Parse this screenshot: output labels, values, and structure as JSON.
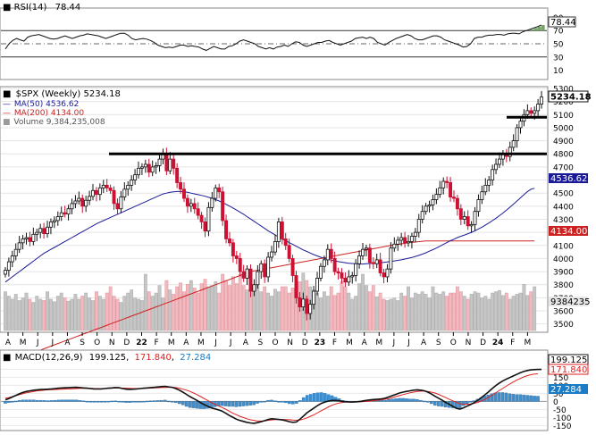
{
  "chart_data": {
    "type": "candlestick",
    "rsi": {
      "label": "RSI(14)",
      "value_text": "78.44",
      "scale_ticks": [
        "90",
        "70",
        "50",
        "30",
        "10"
      ],
      "ylim": [
        0,
        100
      ],
      "overbought": 70,
      "oversold": 30,
      "values": [
        42,
        50,
        55,
        58,
        56,
        54,
        60,
        62,
        63,
        64,
        62,
        60,
        58,
        57,
        58,
        60,
        62,
        60,
        58,
        60,
        62,
        63,
        65,
        64,
        63,
        62,
        60,
        58,
        60,
        62,
        64,
        66,
        66,
        63,
        58,
        56,
        57,
        58,
        57,
        55,
        52,
        48,
        46,
        44,
        45,
        44,
        46,
        48,
        48,
        46,
        47,
        46,
        45,
        42,
        40,
        43,
        46,
        44,
        42,
        42,
        46,
        47,
        50,
        54,
        56,
        54,
        52,
        50,
        46,
        44,
        42,
        44,
        42,
        45,
        46,
        48,
        46,
        50,
        53,
        52,
        48,
        46,
        48,
        50,
        52,
        52,
        54,
        55,
        52,
        50,
        48,
        50,
        52,
        54,
        58,
        59,
        60,
        58,
        60,
        58,
        52,
        50,
        48,
        52,
        55,
        58,
        60,
        62,
        64,
        62,
        58,
        56,
        56,
        58,
        60,
        62,
        62,
        60,
        56,
        54,
        52,
        50,
        48,
        45,
        46,
        50,
        58,
        60,
        60,
        62,
        63,
        63,
        64,
        64,
        63,
        65,
        66,
        66,
        65,
        68,
        70,
        72,
        74,
        76,
        78.44
      ]
    },
    "price": {
      "title": "$SPX (Weekly) 5234.18",
      "last_value": "5234.18",
      "ma50_label": "MA(50) 4536.62",
      "ma50_value": "4536.62",
      "ma200_label": "MA(200) 4134.00",
      "ma200_value": "4134.00",
      "volume_label": "Volume 9,384,235,008",
      "volume_value": "9384235",
      "ylim": [
        3450,
        5300
      ],
      "y_ticks": [
        3500,
        3600,
        3700,
        3800,
        3900,
        4000,
        4100,
        4200,
        4300,
        4400,
        4500,
        4600,
        4700,
        4800,
        4900,
        5000,
        5100,
        5200,
        5300
      ],
      "closes": [
        3910,
        3975,
        4020,
        4070,
        4120,
        4150,
        4160,
        4130,
        4185,
        4200,
        4230,
        4190,
        4240,
        4280,
        4290,
        4320,
        4350,
        4340,
        4380,
        4420,
        4440,
        4460,
        4400,
        4445,
        4475,
        4520,
        4490,
        4540,
        4560,
        4540,
        4520,
        4420,
        4380,
        4470,
        4530,
        4560,
        4600,
        4640,
        4690,
        4700,
        4720,
        4660,
        4700,
        4710,
        4760,
        4800,
        4670,
        4760,
        4690,
        4580,
        4530,
        4460,
        4400,
        4420,
        4380,
        4330,
        4280,
        4210,
        4390,
        4460,
        4540,
        4510,
        4290,
        4150,
        4120,
        4020,
        4000,
        3900,
        3850,
        3920,
        3750,
        3800,
        3900,
        3960,
        3860,
        4010,
        4050,
        4130,
        4280,
        4150,
        4100,
        4000,
        3870,
        3700,
        3630,
        3690,
        3580,
        3650,
        3750,
        3850,
        3940,
        3990,
        4070,
        4000,
        3900,
        3890,
        3850,
        3820,
        3860,
        3870,
        3960,
        4020,
        4070,
        4080,
        3970,
        3960,
        3990,
        3890,
        3860,
        3920,
        4080,
        4110,
        4140,
        4160,
        4120,
        4130,
        4170,
        4200,
        4300,
        4360,
        4400,
        4410,
        4450,
        4490,
        4540,
        4590,
        4580,
        4470,
        4460,
        4380,
        4300,
        4320,
        4250,
        4260,
        4360,
        4450,
        4510,
        4560,
        4600,
        4680,
        4720,
        4760,
        4800,
        4780,
        4850,
        4900,
        5000,
        5050,
        5100,
        5130,
        5110,
        5130,
        5180,
        5234.18
      ],
      "ma50": [
        3820,
        3840,
        3860,
        3880,
        3900,
        3920,
        3940,
        3960,
        3980,
        4000,
        4020,
        4040,
        4055,
        4070,
        4085,
        4100,
        4115,
        4130,
        4145,
        4160,
        4175,
        4190,
        4205,
        4220,
        4235,
        4250,
        4265,
        4278,
        4290,
        4302,
        4314,
        4326,
        4338,
        4350,
        4362,
        4374,
        4386,
        4398,
        4410,
        4422,
        4434,
        4446,
        4458,
        4470,
        4482,
        4494,
        4500,
        4506,
        4510,
        4512,
        4512,
        4510,
        4506,
        4500,
        4494,
        4488,
        4482,
        4476,
        4468,
        4460,
        4450,
        4440,
        4428,
        4414,
        4400,
        4386,
        4370,
        4354,
        4338,
        4320,
        4302,
        4284,
        4266,
        4248,
        4230,
        4212,
        4196,
        4180,
        4164,
        4150,
        4136,
        4122,
        4108,
        4094,
        4080,
        4066,
        4054,
        4042,
        4030,
        4020,
        4010,
        4002,
        3994,
        3988,
        3982,
        3976,
        3972,
        3968,
        3964,
        3962,
        3960,
        3958,
        3958,
        3960,
        3962,
        3964,
        3966,
        3968,
        3970,
        3974,
        3978,
        3982,
        3986,
        3990,
        3996,
        4002,
        4008,
        4016,
        4024,
        4034,
        4044,
        4056,
        4068,
        4080,
        4094,
        4108,
        4122,
        4136,
        4148,
        4160,
        4170,
        4180,
        4190,
        4200,
        4212,
        4226,
        4240,
        4256,
        4272,
        4290,
        4308,
        4328,
        4348,
        4370,
        4392,
        4416,
        4440,
        4464,
        4488,
        4512,
        4530,
        4536.62
      ],
      "ma200": [
        3200,
        3210,
        3220,
        3230,
        3240,
        3250,
        3260,
        3270,
        3280,
        3290,
        3300,
        3310,
        3320,
        3330,
        3340,
        3350,
        3360,
        3370,
        3380,
        3390,
        3400,
        3410,
        3420,
        3430,
        3440,
        3450,
        3460,
        3470,
        3480,
        3490,
        3500,
        3510,
        3520,
        3530,
        3540,
        3550,
        3560,
        3570,
        3580,
        3590,
        3600,
        3610,
        3620,
        3630,
        3640,
        3650,
        3660,
        3670,
        3680,
        3690,
        3700,
        3710,
        3720,
        3730,
        3740,
        3750,
        3760,
        3770,
        3780,
        3790,
        3800,
        3810,
        3820,
        3830,
        3840,
        3850,
        3860,
        3870,
        3880,
        3890,
        3900,
        3905,
        3910,
        3915,
        3920,
        3925,
        3930,
        3935,
        3940,
        3945,
        3950,
        3955,
        3960,
        3965,
        3970,
        3975,
        3980,
        3985,
        3990,
        3995,
        4000,
        4005,
        4010,
        4015,
        4020,
        4025,
        4030,
        4035,
        4040,
        4045,
        4050,
        4055,
        4060,
        4065,
        4070,
        4075,
        4080,
        4085,
        4090,
        4095,
        4100,
        4104,
        4108,
        4112,
        4116,
        4120,
        4123,
        4126,
        4129,
        4132,
        4134,
        4134,
        4134,
        4134,
        4134,
        4134,
        4134,
        4134,
        4134,
        4134,
        4134,
        4134,
        4134,
        4134,
        4134,
        4134,
        4134,
        4134,
        4134,
        4134,
        4134,
        4134,
        4134,
        4134,
        4134,
        4134,
        4134,
        4134,
        4134,
        4134,
        4134,
        4134.0
      ],
      "resistance_levels": [
        4800,
        5080
      ],
      "volume_relative": [
        0.62,
        0.55,
        0.5,
        0.58,
        0.48,
        0.52,
        0.6,
        0.5,
        0.45,
        0.55,
        0.5,
        0.48,
        0.62,
        0.5,
        0.46,
        0.55,
        0.6,
        0.52,
        0.47,
        0.5,
        0.58,
        0.5,
        0.55,
        0.6,
        0.52,
        0.48,
        0.62,
        0.55,
        0.5,
        0.6,
        0.7,
        0.55,
        0.5,
        0.45,
        0.55,
        0.6,
        0.65,
        0.52,
        0.5,
        0.48,
        0.9,
        0.62,
        0.55,
        0.6,
        0.72,
        0.52,
        0.8,
        0.65,
        0.58,
        0.7,
        0.76,
        0.62,
        0.74,
        0.8,
        0.68,
        0.6,
        0.75,
        0.82,
        0.7,
        0.72,
        0.78,
        0.6,
        0.9,
        0.8,
        0.72,
        0.86,
        0.75,
        0.9,
        0.72,
        0.65,
        0.8,
        0.7,
        0.78,
        0.62,
        0.7,
        0.6,
        0.55,
        0.66,
        0.62,
        0.7,
        0.7,
        0.6,
        0.68,
        0.86,
        0.78,
        0.92,
        0.8,
        0.7,
        0.65,
        0.6,
        0.52,
        0.62,
        0.55,
        0.7,
        0.56,
        0.6,
        0.78,
        0.7,
        0.6,
        0.5,
        0.55,
        0.75,
        0.9,
        0.72,
        0.62,
        0.72,
        0.54,
        0.6,
        0.5,
        0.48,
        0.5,
        0.52,
        0.48,
        0.6,
        0.55,
        0.7,
        0.52,
        0.6,
        0.58,
        0.62,
        0.58,
        0.52,
        0.7,
        0.6,
        0.58,
        0.62,
        0.55,
        0.6,
        0.6,
        0.7,
        0.62,
        0.55,
        0.5,
        0.58,
        0.62,
        0.6,
        0.52,
        0.55,
        0.5,
        0.6,
        0.62,
        0.64,
        0.56,
        0.6,
        0.5,
        0.55,
        0.58,
        0.6,
        0.74,
        0.56,
        0.62,
        0.7
      ]
    },
    "x_axis": {
      "labels": [
        "A",
        "M",
        "J",
        "J",
        "A",
        "S",
        "O",
        "N",
        "D",
        "22",
        "F",
        "M",
        "A",
        "M",
        "J",
        "J",
        "A",
        "S",
        "O",
        "N",
        "D",
        "23",
        "F",
        "M",
        "A",
        "M",
        "J",
        "J",
        "A",
        "S",
        "O",
        "N",
        "D",
        "24",
        "F",
        "M"
      ],
      "bold_labels": [
        "22",
        "23",
        "24"
      ]
    },
    "macd": {
      "label": "MACD(12,26,9)",
      "macd_value": "199.125",
      "signal_value": "171.840",
      "hist_value": "27.284",
      "scale_ticks": [
        "200",
        "150",
        "100",
        "50",
        "0",
        "-50",
        "-100",
        "-150"
      ],
      "ylim": [
        -170,
        230
      ],
      "macd_values": [
        10,
        18,
        28,
        38,
        48,
        56,
        62,
        66,
        70,
        72,
        74,
        75,
        76,
        78,
        80,
        82,
        84,
        85,
        86,
        87,
        88,
        86,
        84,
        82,
        80,
        78,
        77,
        78,
        80,
        82,
        84,
        86,
        85,
        80,
        76,
        75,
        76,
        78,
        80,
        82,
        84,
        86,
        88,
        90,
        92,
        94,
        90,
        88,
        80,
        70,
        58,
        44,
        30,
        18,
        6,
        -8,
        -20,
        -30,
        -40,
        -46,
        -52,
        -60,
        -72,
        -86,
        -98,
        -110,
        -118,
        -124,
        -130,
        -134,
        -136,
        -132,
        -126,
        -120,
        -112,
        -108,
        -110,
        -112,
        -115,
        -120,
        -126,
        -130,
        -128,
        -110,
        -90,
        -70,
        -55,
        -40,
        -25,
        -12,
        -4,
        2,
        6,
        6,
        4,
        0,
        -2,
        -4,
        -4,
        -2,
        0,
        4,
        8,
        10,
        12,
        14,
        16,
        20,
        28,
        36,
        44,
        52,
        58,
        62,
        66,
        70,
        72,
        70,
        66,
        58,
        46,
        32,
        20,
        8,
        -6,
        -18,
        -30,
        -42,
        -48,
        -40,
        -30,
        -20,
        -8,
        6,
        22,
        40,
        58,
        78,
        96,
        112,
        126,
        138,
        148,
        158,
        168,
        178,
        186,
        192,
        196,
        198,
        199,
        199.125
      ],
      "signal_values": [
        20,
        24,
        30,
        36,
        42,
        48,
        54,
        58,
        62,
        66,
        68,
        70,
        72,
        73,
        74,
        75,
        76,
        77,
        78,
        79,
        80,
        81,
        81,
        81,
        81,
        80,
        80,
        79,
        80,
        81,
        82,
        83,
        84,
        83,
        82,
        81,
        80,
        80,
        80,
        81,
        82,
        83,
        84,
        85,
        86,
        87,
        88,
        88,
        86,
        82,
        76,
        70,
        62,
        52,
        42,
        30,
        18,
        6,
        -6,
        -18,
        -28,
        -38,
        -48,
        -60,
        -72,
        -82,
        -92,
        -100,
        -108,
        -114,
        -118,
        -122,
        -122,
        -121,
        -118,
        -115,
        -113,
        -112,
        -112,
        -113,
        -114,
        -116,
        -117,
        -115,
        -110,
        -102,
        -92,
        -82,
        -70,
        -58,
        -46,
        -34,
        -24,
        -16,
        -10,
        -6,
        -4,
        -3,
        -3,
        -3,
        -2,
        -1,
        1,
        3,
        5,
        7,
        10,
        14,
        18,
        24,
        30,
        36,
        42,
        48,
        54,
        58,
        62,
        64,
        64,
        62,
        58,
        52,
        44,
        34,
        24,
        14,
        4,
        -6,
        -14,
        -18,
        -18,
        -16,
        -12,
        -6,
        2,
        12,
        24,
        38,
        52,
        66,
        80,
        94,
        108,
        120,
        132,
        142,
        152,
        160,
        166,
        170,
        171.84
      ]
    }
  }
}
